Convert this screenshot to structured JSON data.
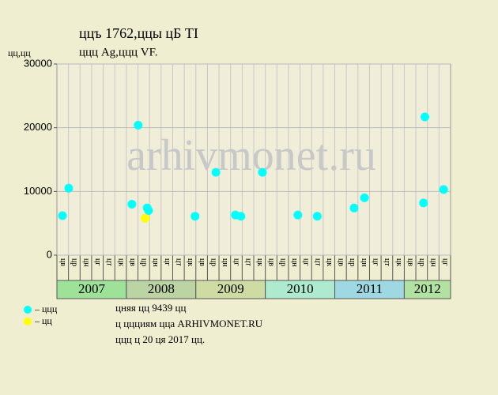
{
  "chart_data": {
    "type": "scatter",
    "title": "ццъ 1762,ццы цБ TI",
    "subtitle": "ццц Ag,ццц VF.",
    "y_label": "цц,цц",
    "watermark": "arhivmonet.ru",
    "ylim": [
      0,
      30000
    ],
    "yticks": [
      0,
      10000,
      20000,
      30000
    ],
    "xlim": [
      2007,
      2012.67
    ],
    "grid": true,
    "periods": [
      {
        "label": "2007",
        "color": "#9ee29a",
        "columns": [
          "цв",
          "цр",
          "цн",
          "цг",
          "цт",
          "цк"
        ]
      },
      {
        "label": "2008",
        "color": "#bcd4a4",
        "columns": [
          "цв",
          "цр",
          "цн",
          "цг",
          "цт",
          "цк"
        ]
      },
      {
        "label": "2009",
        "color": "#cedca4",
        "columns": [
          "цв",
          "цр",
          "цн",
          "цг",
          "цт",
          "цк"
        ]
      },
      {
        "label": "2010",
        "color": "#aeead0",
        "columns": [
          "цв",
          "цр",
          "цн",
          "цг",
          "цт",
          "цк"
        ]
      },
      {
        "label": "2011",
        "color": "#9ed8e2",
        "columns": [
          "цв",
          "цр",
          "цн",
          "цг",
          "цт",
          "цк"
        ]
      },
      {
        "label": "2012",
        "color": "#b2e2a2",
        "columns": [
          "цв",
          "цр",
          "цн",
          "цг"
        ]
      }
    ],
    "series": [
      {
        "name": "– ццц",
        "color": "#00ffff",
        "x": [
          2007.08,
          2007.17,
          2008.08,
          2008.17,
          2008.3,
          2008.32,
          2008.99,
          2009.29,
          2009.57,
          2009.65,
          2009.96,
          2010.47,
          2010.75,
          2011.28,
          2011.43,
          2012.28,
          2012.3,
          2012.57
        ],
        "values": [
          6200,
          10500,
          8000,
          20400,
          7400,
          7000,
          6100,
          13000,
          6300,
          6100,
          13000,
          6300,
          6100,
          7400,
          9000,
          8200,
          21700,
          10300
        ]
      },
      {
        "name": "– цц",
        "color": "#ffff00",
        "x": [
          2008.27
        ],
        "values": [
          5800
        ]
      }
    ],
    "notes": [
      "цняя цц 9439 цц",
      "ц ццциям цца ARHIVMONET.RU",
      "ццц ц 20 ця 2017 цц."
    ]
  }
}
